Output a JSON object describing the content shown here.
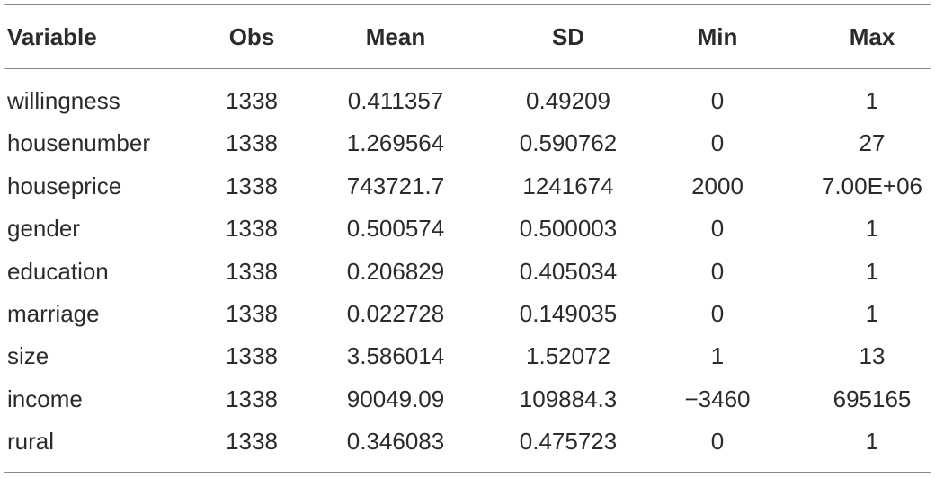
{
  "table": {
    "header": [
      "Variable",
      "Obs",
      "Mean",
      "SD",
      "Min",
      "Max"
    ],
    "rows": [
      [
        "willingness",
        "1338",
        "0.411357",
        "0.49209",
        "0",
        "1"
      ],
      [
        "housenumber",
        "1338",
        "1.269564",
        "0.590762",
        "0",
        "27"
      ],
      [
        "houseprice",
        "1338",
        "743721.7",
        "1241674",
        "2000",
        "7.00E+06"
      ],
      [
        "gender",
        "1338",
        "0.500574",
        "0.500003",
        "0",
        "1"
      ],
      [
        "education",
        "1338",
        "0.206829",
        "0.405034",
        "0",
        "1"
      ],
      [
        "marriage",
        "1338",
        "0.022728",
        "0.149035",
        "0",
        "1"
      ],
      [
        "size",
        "1338",
        "3.586014",
        "1.52072",
        "1",
        "13"
      ],
      [
        "income",
        "1338",
        "90049.09",
        "109884.3",
        "−3460",
        "695165"
      ],
      [
        "rural",
        "1338",
        "0.346083",
        "0.475723",
        "0",
        "1"
      ]
    ]
  }
}
